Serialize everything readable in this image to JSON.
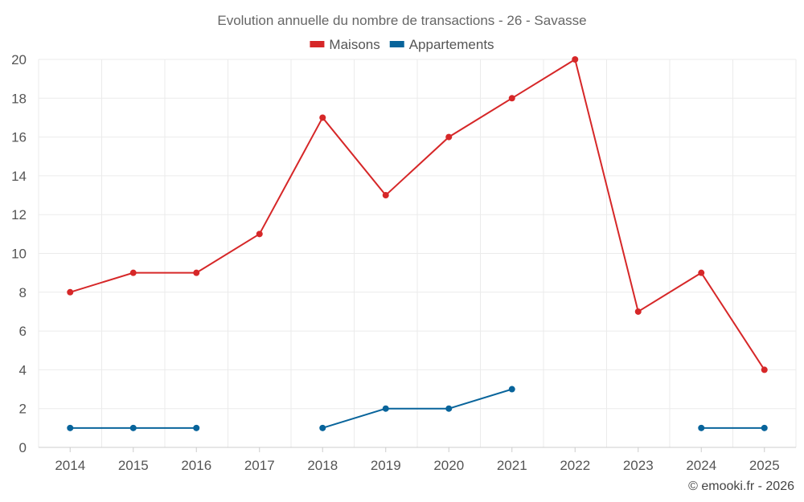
{
  "chart_data": {
    "type": "line",
    "title": "Evolution annuelle du nombre de transactions - 26 - Savasse",
    "categories": [
      "2014",
      "2015",
      "2016",
      "2017",
      "2018",
      "2019",
      "2020",
      "2021",
      "2022",
      "2023",
      "2024",
      "2025"
    ],
    "series": [
      {
        "name": "Maisons",
        "color": "#d62728",
        "values": [
          8,
          9,
          9,
          11,
          17,
          13,
          16,
          18,
          20,
          7,
          9,
          4
        ]
      },
      {
        "name": "Appartements",
        "color": "#08649b",
        "values": [
          1,
          1,
          1,
          null,
          1,
          2,
          2,
          3,
          null,
          null,
          1,
          1
        ]
      }
    ],
    "ylim": [
      0,
      20
    ],
    "yticks": [
      0,
      2,
      4,
      6,
      8,
      10,
      12,
      14,
      16,
      18,
      20
    ],
    "legend_position": "top-center",
    "grid": true,
    "credit": "© emooki.fr - 2026"
  }
}
